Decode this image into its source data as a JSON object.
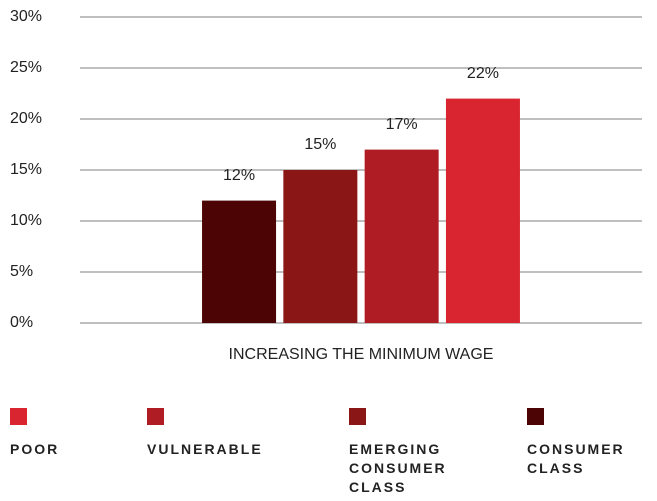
{
  "chart_data": {
    "type": "bar",
    "categories": [
      "INCREASING THE MINIMUM WAGE"
    ],
    "series": [
      {
        "name": "POOR",
        "color": "#d9252f",
        "values": [
          22
        ],
        "value_labels": [
          "22%"
        ]
      },
      {
        "name": "VULNERABLE",
        "color": "#b01c24",
        "values": [
          17
        ],
        "value_labels": [
          "17%"
        ]
      },
      {
        "name": "EMERGING CONSUMER CLASS",
        "color": "#8a1616",
        "values": [
          15
        ],
        "value_labels": [
          "15%"
        ]
      },
      {
        "name": "CONSUMER CLASS",
        "color": "#4c0404",
        "values": [
          12
        ],
        "value_labels": [
          "12%"
        ]
      }
    ],
    "ylim": [
      0,
      30
    ],
    "yticks": [
      {
        "value": 0,
        "label": "0%"
      },
      {
        "value": 5,
        "label": "5%"
      },
      {
        "value": 10,
        "label": "10%"
      },
      {
        "value": 15,
        "label": "15%"
      },
      {
        "value": 20,
        "label": "20%"
      },
      {
        "value": 25,
        "label": "25%"
      },
      {
        "value": 30,
        "label": "30%"
      }
    ],
    "grid": true,
    "legend": "bottom"
  }
}
